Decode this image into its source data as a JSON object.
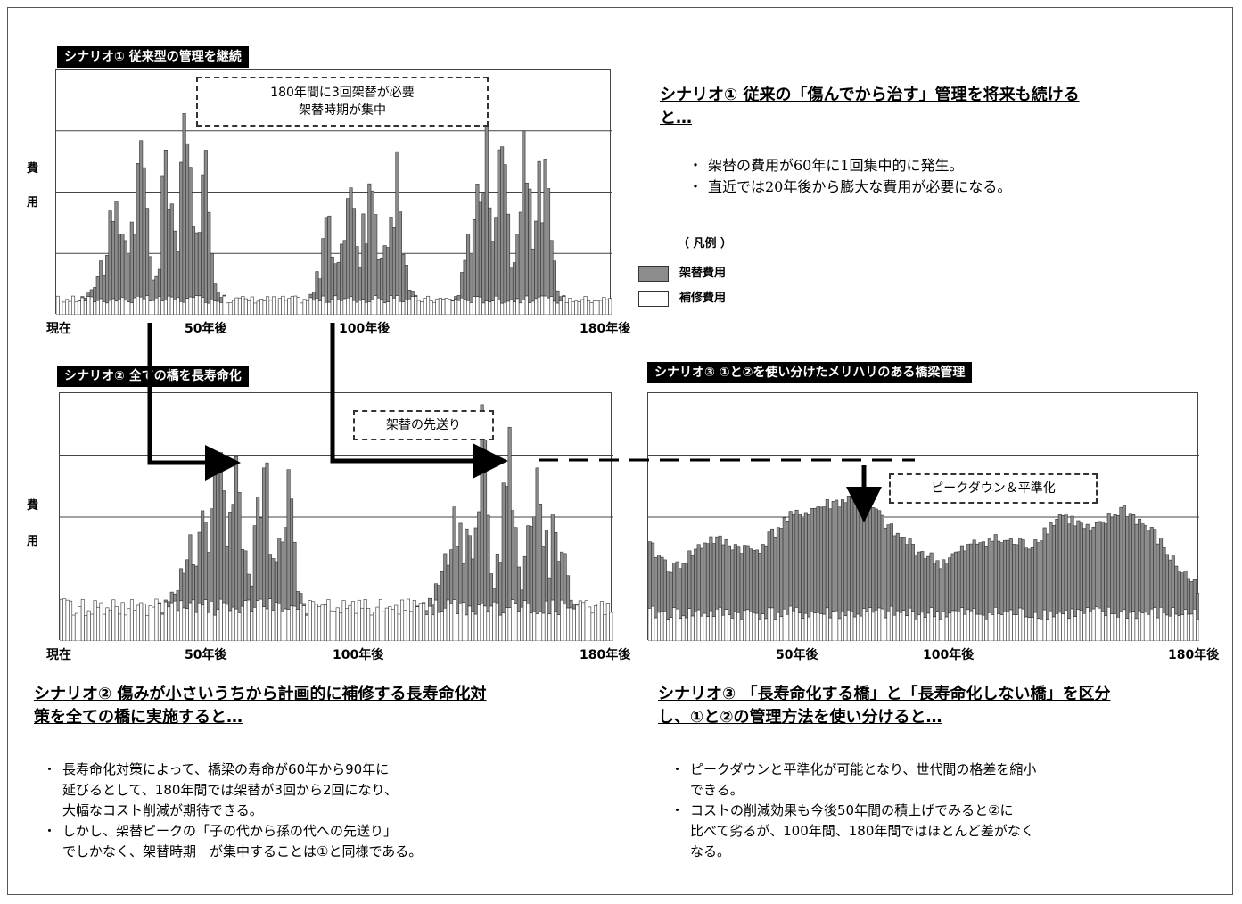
{
  "colors": {
    "replacement": "#8c8c8c",
    "repair": "#ffffff",
    "outline": "#333333",
    "arrow": "#000000"
  },
  "scenario1": {
    "banner": "シナリオ①  従来型の管理を継続",
    "callout_line1": "180年間に3回架替が必要",
    "callout_line2": "架替時期が集中",
    "ylabel_1": "費",
    "ylabel_2": "用",
    "heading_line1": "シナリオ①  従来の「傷んでから治す」管理を将来も続ける",
    "heading_line2": "と…",
    "bullets": [
      "架替の費用が60年に1回集中的に発生。",
      "直近では20年後から膨大な費用が必要になる。"
    ]
  },
  "scenario2": {
    "banner": "シナリオ②  全ての橋を長寿命化",
    "callout": "架替の先送り",
    "ylabel_1": "費",
    "ylabel_2": "用",
    "heading_line1": "シナリオ②  傷みが小さいうちから計画的に補修する長寿命化対",
    "heading_line2": "策を全ての橋に実施すると…",
    "bullets": [
      [
        "長寿命化対策によって、橋梁の寿命が60年から90年に",
        "延びるとして、180年間では架替が3回から2回になり、",
        "大幅なコスト削減が期待できる。"
      ],
      [
        "しかし、架替ピークの「子の代から孫の代への先送り」",
        "でしかなく、架替時期　が集中することは①と同様である。"
      ]
    ]
  },
  "scenario3": {
    "banner": "シナリオ③  ①と②を使い分けたメリハリのある橋梁管理",
    "callout": "ピークダウン＆平準化",
    "heading_line1": "シナリオ③ 「長寿命化する橋」と「長寿命化しない橋」を区分",
    "heading_line2": "し、①と②の管理方法を使い分けると…",
    "bullets": [
      [
        "ピークダウンと平準化が可能となり、世代間の格差を縮小",
        "できる。"
      ],
      [
        "コストの削減効果も今後50年間の積上げでみると②に",
        "比べて劣るが、100年間、180年間ではほとんど差がなく",
        "なる。"
      ]
    ]
  },
  "legend": {
    "title": "（ 凡例 ）",
    "replacement": "架替費用",
    "repair": "補修費用"
  },
  "axis_labels": {
    "now": "現在",
    "y50": "50年後",
    "y100": "100年後",
    "y180": "180年後"
  },
  "chart_data": [
    {
      "type": "bar",
      "stacked": true,
      "name": "scenario1",
      "x_range": [
        0,
        180
      ],
      "ylim": [
        0,
        4
      ],
      "gridlines": [
        1,
        2,
        3
      ],
      "series": [
        {
          "name": "架替費用",
          "peaks": [
            [
              20,
              1.2,
              6
            ],
            [
              28,
              1.7,
              3
            ],
            [
              36,
              2.5,
              2
            ],
            [
              42,
              2.2,
              3
            ],
            [
              48,
              2.0,
              3
            ],
            [
              95,
              2.4,
              2
            ],
            [
              102,
              2.1,
              3
            ],
            [
              110,
              1.9,
              3
            ],
            [
              140,
              2.1,
              3
            ],
            [
              145,
              2.5,
              2
            ],
            [
              152,
              2.0,
              3
            ],
            [
              158,
              1.8,
              3
            ],
            [
              88,
              1.3,
              3
            ],
            [
              135,
              1.3,
              3
            ]
          ]
        },
        {
          "name": "補修費用",
          "base": 0.25
        }
      ]
    },
    {
      "type": "bar",
      "stacked": true,
      "name": "scenario2",
      "x_range": [
        0,
        180
      ],
      "ylim": [
        0,
        4
      ],
      "gridlines": [
        1,
        2,
        3
      ],
      "series": [
        {
          "name": "架替費用",
          "peaks": [
            [
              45,
              0.9,
              6
            ],
            [
              52,
              1.5,
              4
            ],
            [
              58,
              2.5,
              2
            ],
            [
              66,
              2.1,
              3
            ],
            [
              74,
              1.9,
              3
            ],
            [
              130,
              1.2,
              6
            ],
            [
              138,
              2.2,
              2
            ],
            [
              146,
              2.2,
              3
            ],
            [
              155,
              1.9,
              3
            ],
            [
              162,
              1.5,
              3
            ]
          ]
        },
        {
          "name": "補修費用",
          "base": 0.55
        }
      ]
    },
    {
      "type": "bar",
      "stacked": true,
      "name": "scenario3",
      "x_range": [
        0,
        180
      ],
      "ylim": [
        0,
        4
      ],
      "gridlines": [
        1,
        2,
        3
      ],
      "series": [
        {
          "name": "架替費用",
          "curve": [
            [
              0,
              1.1
            ],
            [
              8,
              0.7
            ],
            [
              20,
              1.2
            ],
            [
              35,
              1.0
            ],
            [
              45,
              1.5
            ],
            [
              55,
              1.7
            ],
            [
              70,
              1.9
            ],
            [
              80,
              1.3
            ],
            [
              95,
              0.8
            ],
            [
              110,
              1.2
            ],
            [
              125,
              1.1
            ],
            [
              135,
              1.6
            ],
            [
              145,
              1.3
            ],
            [
              155,
              1.7
            ],
            [
              165,
              1.3
            ],
            [
              172,
              0.8
            ],
            [
              180,
              0.4
            ]
          ]
        },
        {
          "name": "補修費用",
          "base": 0.45
        }
      ]
    }
  ]
}
